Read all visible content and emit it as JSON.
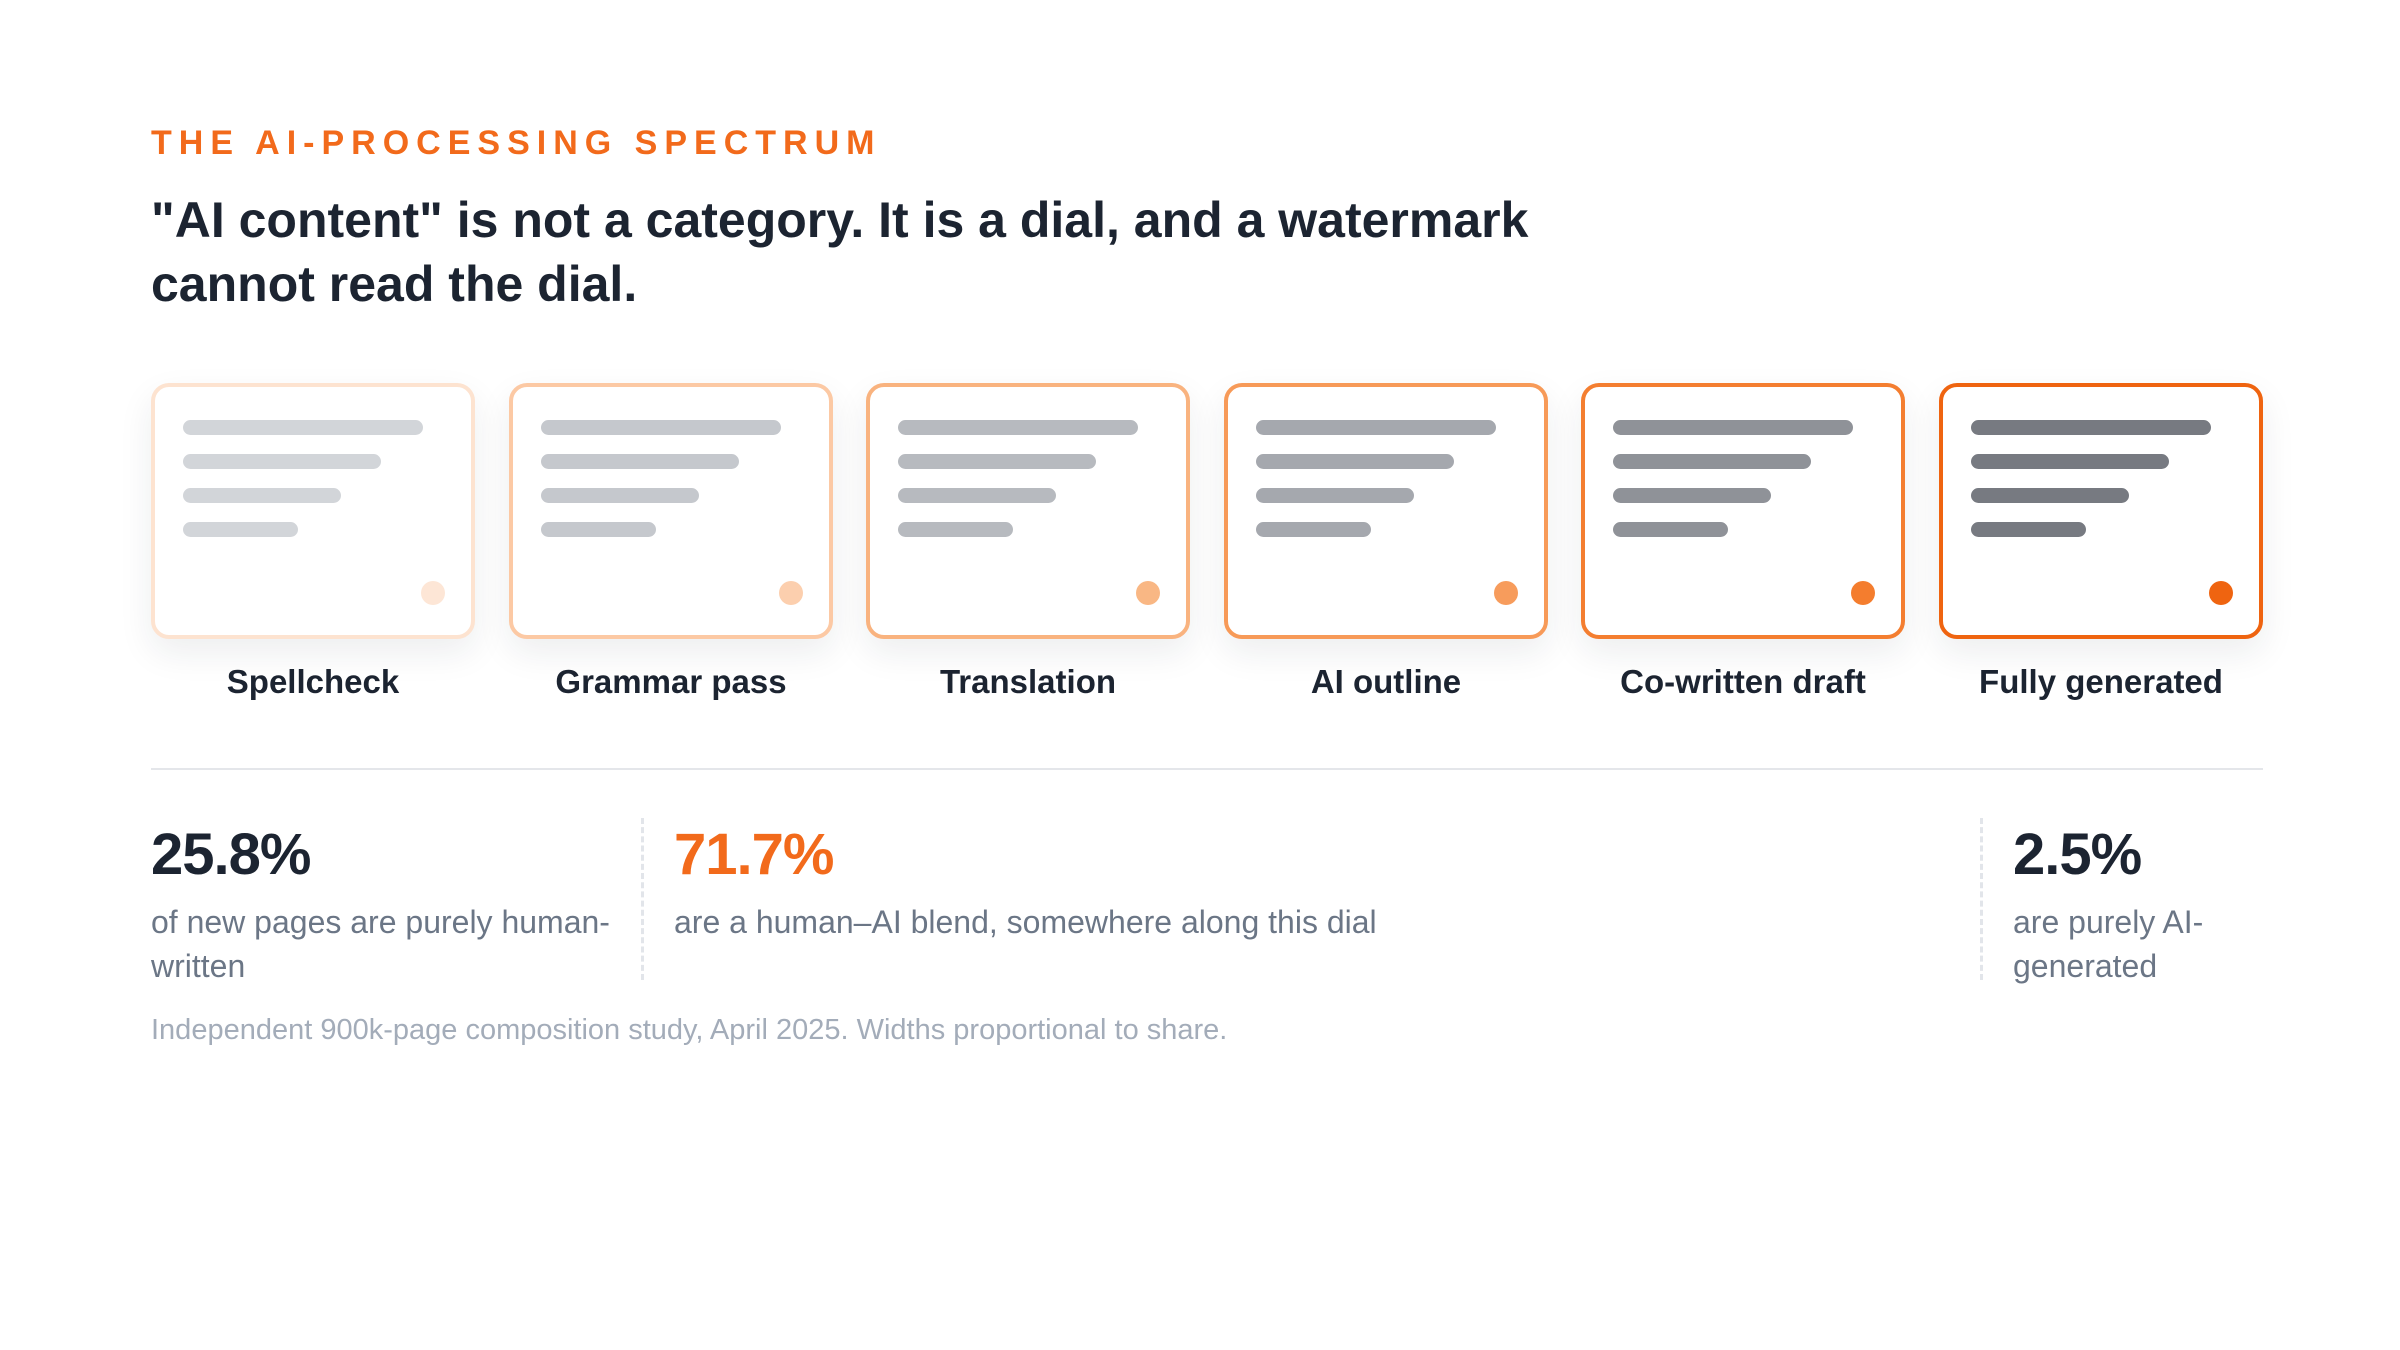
{
  "eyebrow": "THE AI-PROCESSING SPECTRUM",
  "headline": "\"AI content\" is not a category. It is a dial, and a watermark cannot read the dial.",
  "spectrum": [
    {
      "label": "Spellcheck",
      "border": "#fde3d0",
      "line": "#d2d5d9",
      "dot": "#fde6d6"
    },
    {
      "label": "Grammar pass",
      "border": "#fcc9a4",
      "line": "#c5c8cd",
      "dot": "#fccfae"
    },
    {
      "label": "Translation",
      "border": "#f9b37f",
      "line": "#b7babf",
      "dot": "#f9b784"
    },
    {
      "label": "AI outline",
      "border": "#f79a58",
      "line": "#a5a8ae",
      "dot": "#f79c5c"
    },
    {
      "label": "Co-written draft",
      "border": "#f47e30",
      "line": "#8f9298",
      "dot": "#f47d2e"
    },
    {
      "label": "Fully generated",
      "border": "#ef6410",
      "line": "#777a81",
      "dot": "#ef6410"
    }
  ],
  "stats": [
    {
      "value": "25.8%",
      "desc": "of new pages are purely human-written",
      "accent": false
    },
    {
      "value": "71.7%",
      "desc": "are a human–AI blend, somewhere along this dial",
      "accent": true
    },
    {
      "value": "2.5%",
      "desc": "are purely AI-generated",
      "accent": false
    }
  ],
  "footnote": "Independent 900k-page composition study, April 2025. Widths proportional to share."
}
